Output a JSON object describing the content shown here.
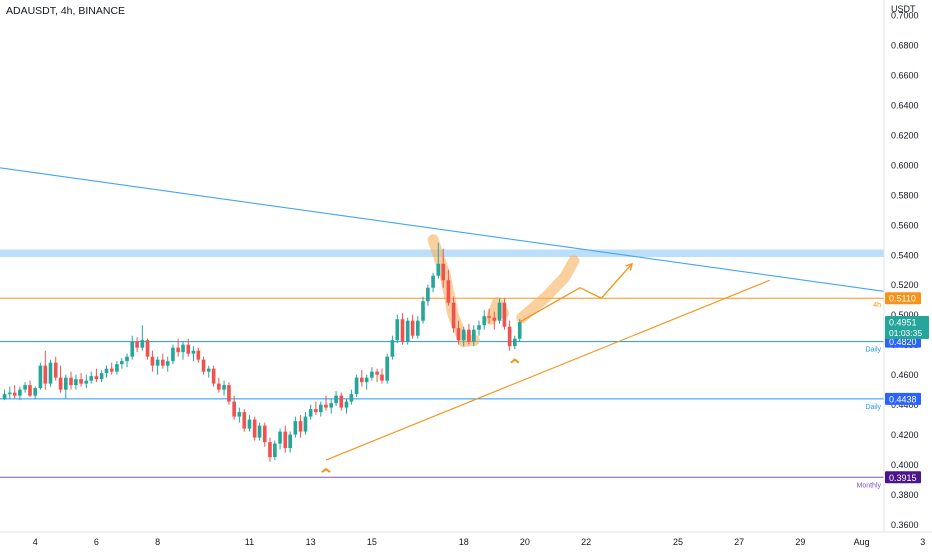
{
  "header": {
    "symbol_label": "ADAUSDT, 4h, BINANCE",
    "currency_label": "USDT"
  },
  "colors": {
    "up": "#26a69a",
    "down": "#ef5350",
    "orange": "#f7931a",
    "blue_line": "#2196f3",
    "daily_tag": "#2962ff",
    "monthly_tag": "#4a148c",
    "current_tag": "#26a69a",
    "resistance_zone": "#bbdefb",
    "highlight": "#f8b15f"
  },
  "chart_data": {
    "type": "candlestick",
    "title": "ADAUSDT, 4h, BINANCE",
    "ylabel": "USDT",
    "ylim": [
      0.355,
      0.71
    ],
    "y_ticks": [
      "0.7000",
      "0.6800",
      "0.6600",
      "0.6400",
      "0.6200",
      "0.6000",
      "0.5800",
      "0.5600",
      "0.5400",
      "0.5200",
      "0.5000",
      "0.4800",
      "0.4600",
      "0.4400",
      "0.4200",
      "0.4000",
      "0.3800",
      "0.3600"
    ],
    "x_ticks": [
      {
        "label": "4",
        "day": 4
      },
      {
        "label": "6",
        "day": 6
      },
      {
        "label": "8",
        "day": 8
      },
      {
        "label": "11",
        "day": 11
      },
      {
        "label": "13",
        "day": 13
      },
      {
        "label": "15",
        "day": 15
      },
      {
        "label": "18",
        "day": 18
      },
      {
        "label": "20",
        "day": 20
      },
      {
        "label": "22",
        "day": 22
      },
      {
        "label": "25",
        "day": 25
      },
      {
        "label": "27",
        "day": 27
      },
      {
        "label": "29",
        "day": 29
      },
      {
        "label": "Aug",
        "day": 31
      },
      {
        "label": "3",
        "day": 33
      }
    ],
    "candles": [
      [
        3.0,
        0.444,
        0.45,
        0.443,
        0.447
      ],
      [
        3.17,
        0.447,
        0.452,
        0.444,
        0.448
      ],
      [
        3.33,
        0.448,
        0.453,
        0.444,
        0.446
      ],
      [
        3.5,
        0.446,
        0.452,
        0.443,
        0.45
      ],
      [
        3.67,
        0.45,
        0.455,
        0.448,
        0.453
      ],
      [
        3.83,
        0.453,
        0.456,
        0.445,
        0.446
      ],
      [
        4.0,
        0.446,
        0.452,
        0.444,
        0.451
      ],
      [
        4.17,
        0.451,
        0.468,
        0.45,
        0.466
      ],
      [
        4.33,
        0.466,
        0.476,
        0.45,
        0.454
      ],
      [
        4.5,
        0.454,
        0.47,
        0.452,
        0.468
      ],
      [
        4.67,
        0.468,
        0.472,
        0.456,
        0.458
      ],
      [
        4.83,
        0.458,
        0.466,
        0.448,
        0.45
      ],
      [
        5.0,
        0.45,
        0.46,
        0.444,
        0.458
      ],
      [
        5.17,
        0.458,
        0.462,
        0.45,
        0.453
      ],
      [
        5.33,
        0.453,
        0.46,
        0.45,
        0.457
      ],
      [
        5.5,
        0.457,
        0.461,
        0.452,
        0.454
      ],
      [
        5.67,
        0.454,
        0.46,
        0.451,
        0.456
      ],
      [
        5.83,
        0.456,
        0.462,
        0.454,
        0.459
      ],
      [
        6.0,
        0.459,
        0.464,
        0.455,
        0.457
      ],
      [
        6.17,
        0.457,
        0.463,
        0.455,
        0.461
      ],
      [
        6.33,
        0.461,
        0.466,
        0.458,
        0.464
      ],
      [
        6.5,
        0.464,
        0.468,
        0.46,
        0.462
      ],
      [
        6.67,
        0.462,
        0.469,
        0.46,
        0.467
      ],
      [
        6.83,
        0.467,
        0.471,
        0.464,
        0.469
      ],
      [
        7.0,
        0.469,
        0.474,
        0.465,
        0.472
      ],
      [
        7.17,
        0.472,
        0.486,
        0.47,
        0.482
      ],
      [
        7.33,
        0.482,
        0.485,
        0.475,
        0.478
      ],
      [
        7.5,
        0.478,
        0.493,
        0.476,
        0.483
      ],
      [
        7.67,
        0.483,
        0.484,
        0.47,
        0.472
      ],
      [
        7.83,
        0.472,
        0.476,
        0.462,
        0.466
      ],
      [
        8.0,
        0.466,
        0.472,
        0.46,
        0.47
      ],
      [
        8.17,
        0.47,
        0.474,
        0.464,
        0.466
      ],
      [
        8.33,
        0.466,
        0.472,
        0.462,
        0.469
      ],
      [
        8.5,
        0.469,
        0.48,
        0.467,
        0.478
      ],
      [
        8.67,
        0.478,
        0.484,
        0.472,
        0.475
      ],
      [
        8.83,
        0.475,
        0.482,
        0.47,
        0.48
      ],
      [
        9.0,
        0.48,
        0.484,
        0.472,
        0.474
      ],
      [
        9.17,
        0.474,
        0.479,
        0.469,
        0.476
      ],
      [
        9.33,
        0.476,
        0.478,
        0.468,
        0.47
      ],
      [
        9.5,
        0.47,
        0.472,
        0.46,
        0.462
      ],
      [
        9.67,
        0.462,
        0.466,
        0.458,
        0.464
      ],
      [
        9.83,
        0.464,
        0.466,
        0.452,
        0.454
      ],
      [
        10.0,
        0.454,
        0.458,
        0.448,
        0.45
      ],
      [
        10.17,
        0.45,
        0.456,
        0.446,
        0.453
      ],
      [
        10.33,
        0.453,
        0.455,
        0.44,
        0.442
      ],
      [
        10.5,
        0.442,
        0.446,
        0.43,
        0.432
      ],
      [
        10.67,
        0.432,
        0.438,
        0.428,
        0.435
      ],
      [
        10.83,
        0.435,
        0.437,
        0.422,
        0.424
      ],
      [
        11.0,
        0.424,
        0.433,
        0.422,
        0.43
      ],
      [
        11.17,
        0.43,
        0.432,
        0.416,
        0.418
      ],
      [
        11.33,
        0.418,
        0.428,
        0.416,
        0.426
      ],
      [
        11.5,
        0.426,
        0.428,
        0.412,
        0.415
      ],
      [
        11.67,
        0.415,
        0.418,
        0.402,
        0.405
      ],
      [
        11.83,
        0.405,
        0.416,
        0.403,
        0.414
      ],
      [
        12.0,
        0.414,
        0.424,
        0.41,
        0.422
      ],
      [
        12.17,
        0.422,
        0.426,
        0.408,
        0.411
      ],
      [
        12.33,
        0.411,
        0.422,
        0.408,
        0.42
      ],
      [
        12.5,
        0.42,
        0.432,
        0.418,
        0.429
      ],
      [
        12.67,
        0.429,
        0.433,
        0.418,
        0.422
      ],
      [
        12.83,
        0.422,
        0.435,
        0.42,
        0.432
      ],
      [
        13.0,
        0.432,
        0.44,
        0.43,
        0.437
      ],
      [
        13.17,
        0.437,
        0.442,
        0.433,
        0.435
      ],
      [
        13.33,
        0.435,
        0.442,
        0.432,
        0.44
      ],
      [
        13.5,
        0.44,
        0.446,
        0.436,
        0.438
      ],
      [
        13.67,
        0.438,
        0.444,
        0.434,
        0.441
      ],
      [
        13.83,
        0.441,
        0.449,
        0.439,
        0.446
      ],
      [
        14.0,
        0.446,
        0.448,
        0.436,
        0.438
      ],
      [
        14.17,
        0.438,
        0.444,
        0.434,
        0.442
      ],
      [
        14.33,
        0.442,
        0.45,
        0.44,
        0.447
      ],
      [
        14.5,
        0.447,
        0.46,
        0.445,
        0.458
      ],
      [
        14.67,
        0.458,
        0.463,
        0.452,
        0.455
      ],
      [
        14.83,
        0.455,
        0.46,
        0.45,
        0.458
      ],
      [
        15.0,
        0.458,
        0.465,
        0.456,
        0.462
      ],
      [
        15.17,
        0.462,
        0.464,
        0.455,
        0.46
      ],
      [
        15.33,
        0.46,
        0.464,
        0.454,
        0.456
      ],
      [
        15.5,
        0.456,
        0.474,
        0.454,
        0.472
      ],
      [
        15.67,
        0.472,
        0.486,
        0.47,
        0.483
      ],
      [
        15.83,
        0.483,
        0.5,
        0.481,
        0.497
      ],
      [
        16.0,
        0.497,
        0.501,
        0.48,
        0.482
      ],
      [
        16.17,
        0.482,
        0.498,
        0.48,
        0.496
      ],
      [
        16.33,
        0.496,
        0.5,
        0.484,
        0.486
      ],
      [
        16.5,
        0.486,
        0.499,
        0.484,
        0.496
      ],
      [
        16.67,
        0.496,
        0.512,
        0.494,
        0.509
      ],
      [
        16.83,
        0.509,
        0.52,
        0.506,
        0.518
      ],
      [
        17.0,
        0.518,
        0.528,
        0.515,
        0.526
      ],
      [
        17.17,
        0.526,
        0.548,
        0.524,
        0.534
      ],
      [
        17.33,
        0.534,
        0.544,
        0.518,
        0.523
      ],
      [
        17.5,
        0.523,
        0.53,
        0.506,
        0.508
      ],
      [
        17.67,
        0.508,
        0.512,
        0.488,
        0.491
      ],
      [
        17.83,
        0.491,
        0.496,
        0.48,
        0.483
      ],
      [
        18.0,
        0.483,
        0.492,
        0.479,
        0.49
      ],
      [
        18.17,
        0.49,
        0.494,
        0.48,
        0.482
      ],
      [
        18.33,
        0.482,
        0.493,
        0.479,
        0.49
      ],
      [
        18.5,
        0.49,
        0.496,
        0.486,
        0.493
      ],
      [
        18.67,
        0.493,
        0.503,
        0.49,
        0.499
      ],
      [
        18.83,
        0.499,
        0.504,
        0.494,
        0.498
      ],
      [
        19.0,
        0.498,
        0.502,
        0.49,
        0.496
      ],
      [
        19.17,
        0.496,
        0.511,
        0.494,
        0.508
      ],
      [
        19.33,
        0.508,
        0.511,
        0.49,
        0.492
      ],
      [
        19.5,
        0.492,
        0.496,
        0.476,
        0.479
      ],
      [
        19.67,
        0.479,
        0.486,
        0.477,
        0.484
      ],
      [
        19.83,
        0.484,
        0.497,
        0.482,
        0.4951
      ]
    ],
    "x_scale": {
      "day_min": 2.85,
      "day_max": 33.3
    },
    "levels": [
      {
        "price": 0.511,
        "label": "0.5110",
        "note": "4h"
      },
      {
        "price": 0.482,
        "label": "0.4820",
        "note": "Daily"
      },
      {
        "price": 0.4438,
        "label": "0.4438",
        "note": "Daily"
      },
      {
        "price": 0.3915,
        "label": "0.3915",
        "note": "Monthly"
      }
    ],
    "resistance_zone": [
      0.5385,
      0.5435
    ],
    "current_price": {
      "price": 0.4951,
      "label": "0.4951",
      "countdown": "01:03:35"
    },
    "trendlines": {
      "descending": [
        [
          2.85,
          0.598
        ],
        [
          33.0,
          0.512
        ]
      ],
      "ascending": [
        [
          13.5,
          0.403
        ],
        [
          28.0,
          0.523
        ]
      ]
    },
    "projection": [
      [
        19.83,
        0.4951
      ],
      [
        21.8,
        0.518
      ],
      [
        22.5,
        0.511
      ],
      [
        23.5,
        0.534
      ]
    ],
    "highlights": [
      [
        [
          17.0,
          0.55
        ],
        [
          17.4,
          0.526
        ],
        [
          17.65,
          0.5
        ],
        [
          18.0,
          0.482
        ],
        [
          18.35,
          0.483
        ]
      ],
      [
        [
          18.9,
          0.497
        ],
        [
          19.1,
          0.508
        ],
        [
          19.3,
          0.501
        ]
      ],
      [
        [
          19.9,
          0.498
        ],
        [
          20.7,
          0.512
        ],
        [
          21.3,
          0.525
        ],
        [
          21.6,
          0.536
        ]
      ]
    ],
    "markers": [
      [
        13.5,
        0.403
      ],
      [
        19.67,
        0.476
      ]
    ]
  }
}
